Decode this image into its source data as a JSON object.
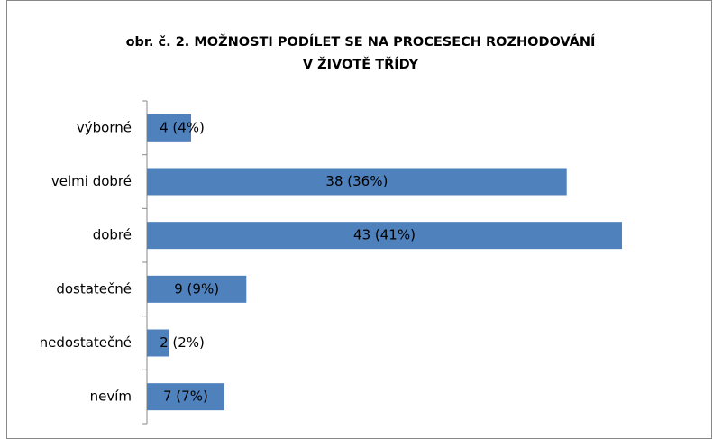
{
  "chart_data": {
    "type": "bar",
    "orientation": "horizontal",
    "title": [
      "obr. č. 2. MOŽNOSTI PODÍLET SE NA PROCESECH ROZHODOVÁNÍ",
      "V ŽIVOTĚ TŘÍDY"
    ],
    "categories": [
      "výborné",
      "velmi dobré",
      "dobré",
      "dostatečné",
      "nedostatečné",
      "nevím"
    ],
    "values": [
      4,
      38,
      43,
      9,
      2,
      7
    ],
    "value_labels": [
      "4 (4%)",
      "38 (36%)",
      "43 (41%)",
      "9 (9%)",
      "2 (2%)",
      "7 (7%)"
    ],
    "color": "#4f81bd"
  }
}
